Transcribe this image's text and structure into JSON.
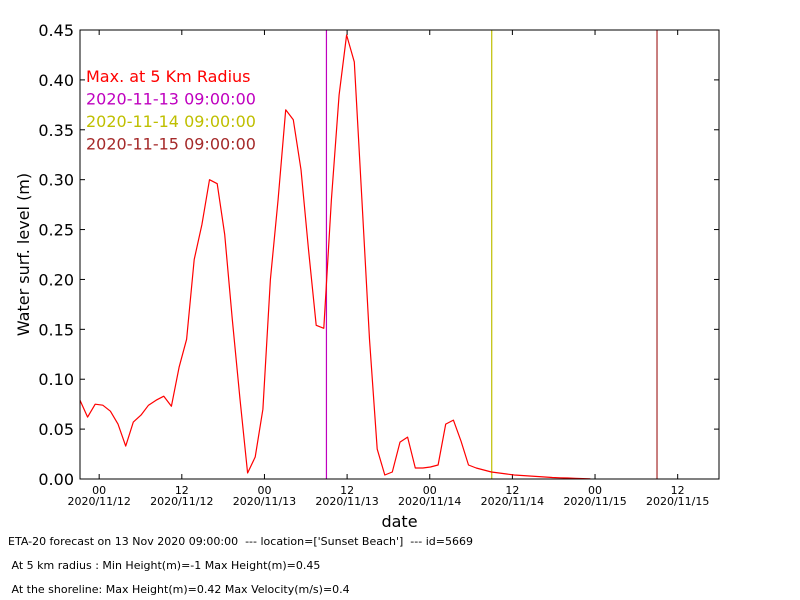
{
  "chart_data": {
    "type": "line",
    "xlabel": "date",
    "ylabel": "Water surf. level (m)",
    "ylim": [
      0,
      0.45
    ],
    "xlim": [
      "2020-11-11 21:13",
      "2020-11-15 18:00"
    ],
    "yticks": [
      "0.00",
      "0.05",
      "0.10",
      "0.15",
      "0.20",
      "0.25",
      "0.30",
      "0.35",
      "0.40",
      "0.45"
    ],
    "xticks": [
      {
        "t": "2020-11-12 00:00",
        "top": "00",
        "bottom": "2020/11/12"
      },
      {
        "t": "2020-11-12 12:00",
        "top": "12",
        "bottom": "2020/11/12"
      },
      {
        "t": "2020-11-13 00:00",
        "top": "00",
        "bottom": "2020/11/13"
      },
      {
        "t": "2020-11-13 12:00",
        "top": "12",
        "bottom": "2020/11/13"
      },
      {
        "t": "2020-11-14 00:00",
        "top": "00",
        "bottom": "2020/11/14"
      },
      {
        "t": "2020-11-14 12:00",
        "top": "12",
        "bottom": "2020/11/14"
      },
      {
        "t": "2020-11-15 00:00",
        "top": "00",
        "bottom": "2020/11/15"
      },
      {
        "t": "2020-11-15 12:00",
        "top": "12",
        "bottom": "2020/11/15"
      }
    ],
    "series": [
      {
        "name": "Max. at 5 Km Radius",
        "color": "#ff0000",
        "x": [
          "2020-11-11 21:13",
          "2020-11-11 22:19",
          "2020-11-11 23:25",
          "2020-11-12 00:32",
          "2020-11-12 01:38",
          "2020-11-12 02:44",
          "2020-11-12 03:51",
          "2020-11-12 04:57",
          "2020-11-12 06:04",
          "2020-11-12 07:10",
          "2020-11-12 08:16",
          "2020-11-12 09:23",
          "2020-11-12 10:29",
          "2020-11-12 11:36",
          "2020-11-12 12:42",
          "2020-11-12 13:48",
          "2020-11-12 14:55",
          "2020-11-12 16:01",
          "2020-11-12 17:08",
          "2020-11-12 18:14",
          "2020-11-12 19:20",
          "2020-11-12 20:27",
          "2020-11-12 21:33",
          "2020-11-12 22:39",
          "2020-11-12 23:46",
          "2020-11-13 00:52",
          "2020-11-13 01:59",
          "2020-11-13 03:05",
          "2020-11-13 04:11",
          "2020-11-13 05:18",
          "2020-11-13 06:24",
          "2020-11-13 07:31",
          "2020-11-13 08:37",
          "2020-11-13 09:43",
          "2020-11-13 10:50",
          "2020-11-13 11:56",
          "2020-11-13 13:03",
          "2020-11-13 14:09",
          "2020-11-13 15:15",
          "2020-11-13 16:22",
          "2020-11-13 17:28",
          "2020-11-13 18:34",
          "2020-11-13 19:41",
          "2020-11-13 20:47",
          "2020-11-13 21:54",
          "2020-11-13 23:00",
          "2020-11-14 00:06",
          "2020-11-14 01:13",
          "2020-11-14 02:19",
          "2020-11-14 03:26",
          "2020-11-14 04:32",
          "2020-11-14 05:38",
          "2020-11-14 06:45",
          "2020-11-14 07:51",
          "2020-11-14 08:57",
          "2020-11-14 10:04",
          "2020-11-14 11:10",
          "2020-11-14 12:17",
          "2020-11-14 13:23",
          "2020-11-14 14:29",
          "2020-11-14 15:36",
          "2020-11-14 16:42",
          "2020-11-14 17:49",
          "2020-11-14 18:55",
          "2020-11-14 20:01",
          "2020-11-14 21:08",
          "2020-11-14 22:14",
          "2020-11-14 23:20"
        ],
        "y": [
          0.079,
          0.062,
          0.075,
          0.074,
          0.068,
          0.055,
          0.033,
          0.057,
          0.064,
          0.074,
          0.079,
          0.083,
          0.073,
          0.112,
          0.14,
          0.22,
          0.255,
          0.3,
          0.296,
          0.245,
          0.16,
          0.08,
          0.006,
          0.022,
          0.07,
          0.2,
          0.28,
          0.37,
          0.36,
          0.31,
          0.23,
          0.154,
          0.151,
          0.28,
          0.385,
          0.445,
          0.418,
          0.28,
          0.14,
          0.03,
          0.004,
          0.007,
          0.037,
          0.042,
          0.011,
          0.011,
          0.012,
          0.014,
          0.055,
          0.059,
          0.038,
          0.014,
          0.011,
          0.009,
          0.007,
          0.006,
          0.005,
          0.004,
          0.0035,
          0.003,
          0.0025,
          0.002,
          0.0015,
          0.0012,
          0.001,
          0.0007,
          0.0004,
          0.0002
        ]
      }
    ],
    "vlines": [
      {
        "name": "2020-11-13 09:00:00",
        "x": "2020-11-13 09:00",
        "color": "#bf00bf"
      },
      {
        "name": "2020-11-14 09:00:00",
        "x": "2020-11-14 09:00",
        "color": "#bfbf00"
      },
      {
        "name": "2020-11-15 09:00:00",
        "x": "2020-11-15 09:00",
        "color": "#a52a2a"
      }
    ],
    "legend_placement": "top-left"
  },
  "footer": {
    "line1": "ETA-20 forecast on 13 Nov 2020 09:00:00  --- location=['Sunset Beach']  --- id=5669",
    "line2": " At 5 km radius : Min Height(m)=-1 Max Height(m)=0.45",
    "line3": " At the shoreline: Max Height(m)=0.42 Max Velocity(m/s)=0.4"
  }
}
